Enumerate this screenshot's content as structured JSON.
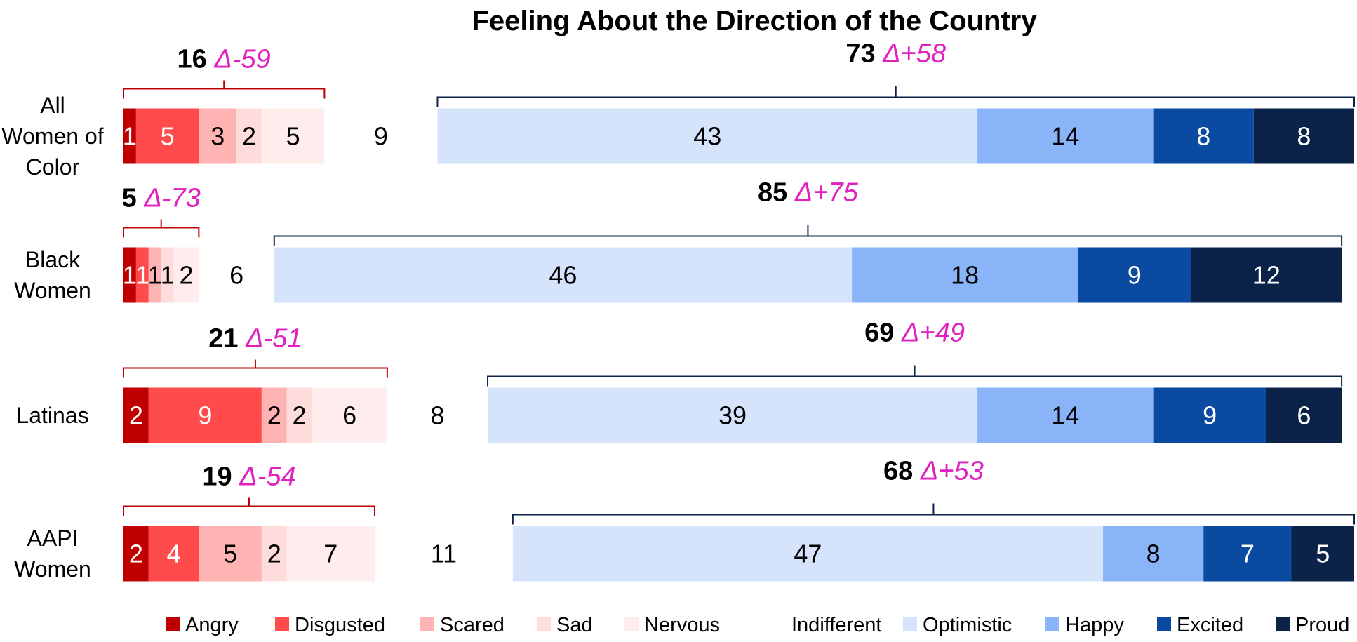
{
  "chart_data": {
    "type": "stacked-bar",
    "title": "Feeling About the Direction of the Country",
    "categories": [
      "All Women of Color",
      "Black Women",
      "Latinas",
      "AAPI Women"
    ],
    "xlim": [
      0,
      98
    ],
    "series": [
      {
        "name": "Angry",
        "color": "#c00000",
        "values": [
          1,
          1,
          2,
          2
        ]
      },
      {
        "name": "Disgusted",
        "color": "#ff4b4b",
        "values": [
          5,
          1,
          9,
          4
        ]
      },
      {
        "name": "Scared",
        "color": "#ffb3b3",
        "values": [
          3,
          1,
          2,
          5
        ]
      },
      {
        "name": "Sad",
        "color": "#ffdcdc",
        "values": [
          2,
          1,
          2,
          2
        ]
      },
      {
        "name": "Nervous",
        "color": "#ffeded",
        "values": [
          5,
          2,
          6,
          7
        ]
      },
      {
        "name": "Indifferent",
        "color": "#ffffff",
        "values": [
          9,
          6,
          8,
          11
        ]
      },
      {
        "name": "Optimistic",
        "color": "#d6e4fb",
        "values": [
          43,
          46,
          39,
          47
        ]
      },
      {
        "name": "Happy",
        "color": "#8ab4f8",
        "values": [
          14,
          18,
          14,
          8
        ]
      },
      {
        "name": "Excited",
        "color": "#0a4aa0",
        "values": [
          8,
          9,
          9,
          7
        ]
      },
      {
        "name": "Proud",
        "color": "#0b2349",
        "values": [
          8,
          12,
          6,
          5
        ]
      }
    ],
    "annotations": {
      "negative": {
        "color": "#c00000",
        "values": [
          16,
          5,
          21,
          19
        ],
        "deltas": [
          "Δ-59",
          "Δ-73",
          "Δ-51",
          "Δ-54"
        ]
      },
      "positive": {
        "color": "#0b2349",
        "values": [
          73,
          85,
          69,
          68
        ],
        "deltas": [
          "Δ+58",
          "Δ+75",
          "Δ+49",
          "Δ+53"
        ]
      },
      "delta_color": "#e020c0"
    }
  }
}
